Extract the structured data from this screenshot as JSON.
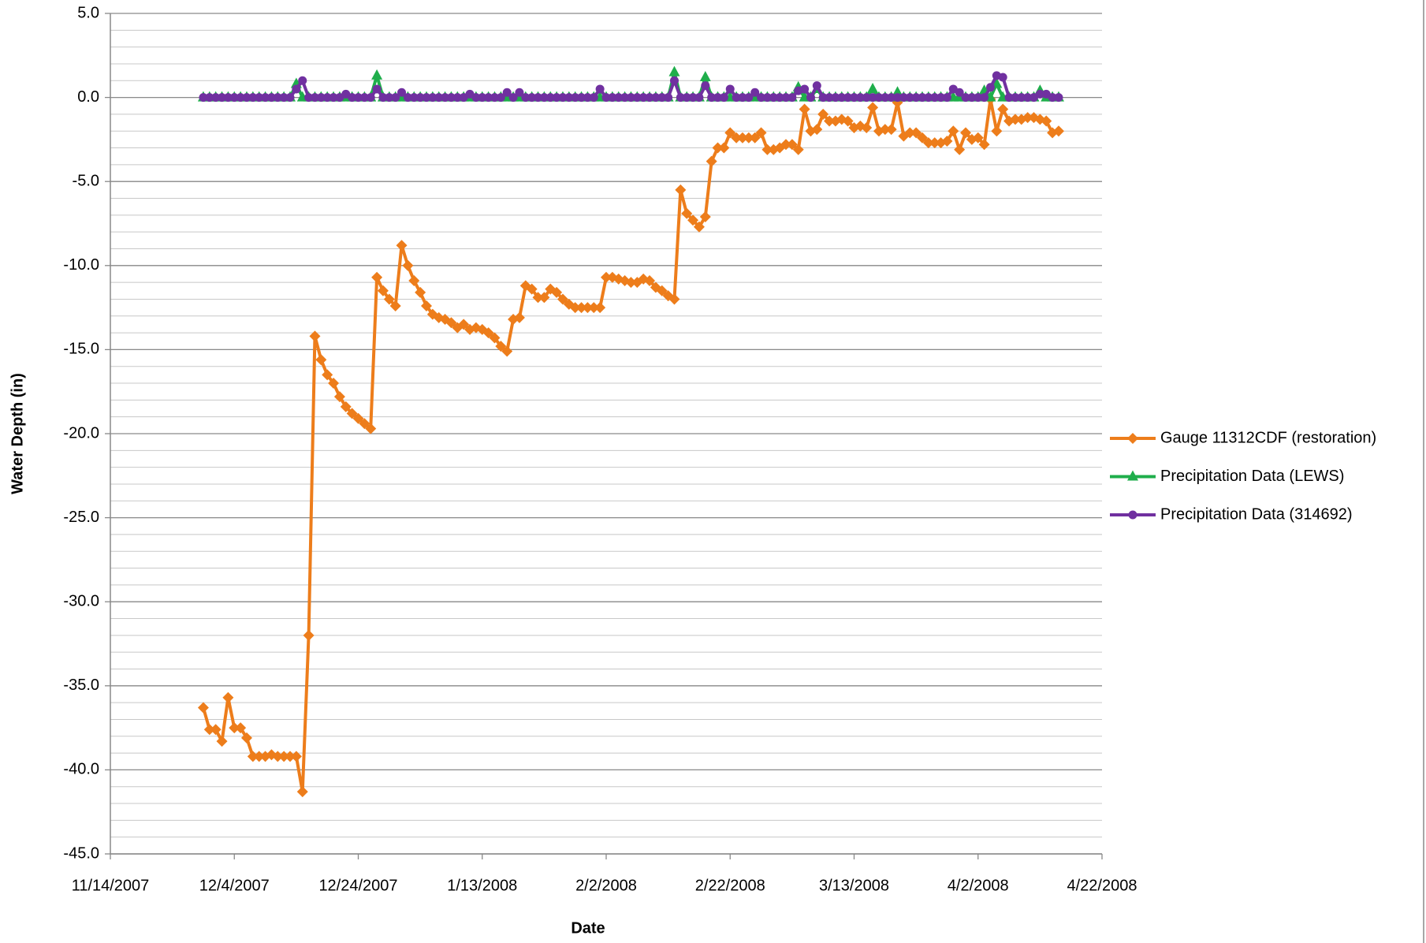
{
  "chart_data": {
    "type": "line",
    "xlabel": "Date",
    "ylabel": "Water Depth (in)",
    "xlim": [
      "11/14/2007",
      "4/22/2008"
    ],
    "xticks": [
      "11/14/2007",
      "12/4/2007",
      "12/24/2007",
      "1/13/2008",
      "2/2/2008",
      "2/22/2008",
      "3/13/2008",
      "4/2/2008",
      "4/22/2008"
    ],
    "ylim": [
      -45,
      5
    ],
    "yticks": [
      {
        "value": 5,
        "label": "5.0"
      },
      {
        "value": 0,
        "label": "0.0"
      },
      {
        "value": -5,
        "label": "-5.0"
      },
      {
        "value": -10,
        "label": "-10.0"
      },
      {
        "value": -15,
        "label": "-15.0"
      },
      {
        "value": -20,
        "label": "-20.0"
      },
      {
        "value": -25,
        "label": "-25.0"
      },
      {
        "value": -30,
        "label": "-30.0"
      },
      {
        "value": -35,
        "label": "-35.0"
      },
      {
        "value": -40,
        "label": "-40.0"
      },
      {
        "value": -45,
        "label": "-45.0"
      }
    ],
    "grid": true,
    "minor_grid": 1,
    "legend": "right",
    "x": [
      "11/29/2007",
      "11/30/2007",
      "12/1/2007",
      "12/2/2007",
      "12/3/2007",
      "12/4/2007",
      "12/5/2007",
      "12/6/2007",
      "12/7/2007",
      "12/8/2007",
      "12/9/2007",
      "12/10/2007",
      "12/11/2007",
      "12/12/2007",
      "12/13/2007",
      "12/14/2007",
      "12/15/2007",
      "12/16/2007",
      "12/17/2007",
      "12/18/2007",
      "12/19/2007",
      "12/20/2007",
      "12/21/2007",
      "12/22/2007",
      "12/23/2007",
      "12/24/2007",
      "12/25/2007",
      "12/26/2007",
      "12/27/2007",
      "12/28/2007",
      "12/29/2007",
      "12/30/2007",
      "12/31/2007",
      "1/1/2008",
      "1/2/2008",
      "1/3/2008",
      "1/4/2008",
      "1/5/2008",
      "1/6/2008",
      "1/7/2008",
      "1/8/2008",
      "1/9/2008",
      "1/10/2008",
      "1/11/2008",
      "1/12/2008",
      "1/13/2008",
      "1/14/2008",
      "1/15/2008",
      "1/16/2008",
      "1/17/2008",
      "1/18/2008",
      "1/19/2008",
      "1/20/2008",
      "1/21/2008",
      "1/22/2008",
      "1/23/2008",
      "1/24/2008",
      "1/25/2008",
      "1/26/2008",
      "1/27/2008",
      "1/28/2008",
      "1/29/2008",
      "1/30/2008",
      "1/31/2008",
      "2/1/2008",
      "2/2/2008",
      "2/3/2008",
      "2/4/2008",
      "2/5/2008",
      "2/6/2008",
      "2/7/2008",
      "2/8/2008",
      "2/9/2008",
      "2/10/2008",
      "2/11/2008",
      "2/12/2008",
      "2/13/2008",
      "2/14/2008",
      "2/15/2008",
      "2/16/2008",
      "2/17/2008",
      "2/18/2008",
      "2/19/2008",
      "2/20/2008",
      "2/21/2008",
      "2/22/2008",
      "2/23/2008",
      "2/24/2008",
      "2/25/2008",
      "2/26/2008",
      "2/27/2008",
      "2/28/2008",
      "2/29/2008",
      "3/1/2008",
      "3/2/2008",
      "3/3/2008",
      "3/4/2008",
      "3/5/2008",
      "3/6/2008",
      "3/7/2008",
      "3/8/2008",
      "3/9/2008",
      "3/10/2008",
      "3/11/2008",
      "3/12/2008",
      "3/13/2008",
      "3/14/2008",
      "3/15/2008",
      "3/16/2008",
      "3/17/2008",
      "3/18/2008",
      "3/19/2008",
      "3/20/2008",
      "3/21/2008",
      "3/22/2008",
      "3/23/2008",
      "3/24/2008",
      "3/25/2008",
      "3/26/2008",
      "3/27/2008",
      "3/28/2008",
      "3/29/2008",
      "3/30/2008",
      "3/31/2008",
      "4/1/2008",
      "4/2/2008",
      "4/3/2008",
      "4/4/2008",
      "4/5/2008",
      "4/6/2008",
      "4/7/2008",
      "4/8/2008",
      "4/9/2008",
      "4/10/2008",
      "4/11/2008",
      "4/12/2008",
      "4/13/2008",
      "4/14/2008",
      "4/15/2008"
    ],
    "series": [
      {
        "name": "Gauge 11312CDF (restoration)",
        "color": "#ed7d1b",
        "marker": "diamond",
        "values": [
          -36.3,
          -37.6,
          -37.6,
          -38.3,
          -35.7,
          -37.5,
          -37.5,
          -38.1,
          -39.2,
          -39.2,
          -39.2,
          -39.1,
          -39.2,
          -39.2,
          -39.2,
          -39.2,
          -41.3,
          -32.0,
          -14.2,
          -15.6,
          -16.5,
          -17.0,
          -17.8,
          -18.4,
          -18.8,
          -19.1,
          -19.4,
          -19.7,
          -10.7,
          -11.5,
          -12.0,
          -12.4,
          -8.8,
          -10.0,
          -10.9,
          -11.6,
          -12.4,
          -12.9,
          -13.1,
          -13.2,
          -13.4,
          -13.7,
          -13.5,
          -13.8,
          -13.7,
          -13.8,
          -14.0,
          -14.3,
          -14.8,
          -15.1,
          -13.2,
          -13.1,
          -11.2,
          -11.4,
          -11.9,
          -11.9,
          -11.4,
          -11.6,
          -12.0,
          -12.3,
          -12.5,
          -12.5,
          -12.5,
          -12.5,
          -12.5,
          -10.7,
          -10.7,
          -10.8,
          -10.9,
          -11.0,
          -11.0,
          -10.8,
          -10.9,
          -11.3,
          -11.5,
          -11.8,
          -12.0,
          -5.5,
          -6.9,
          -7.3,
          -7.7,
          -7.1,
          -3.8,
          -3.0,
          -3.0,
          -2.1,
          -2.4,
          -2.4,
          -2.4,
          -2.4,
          -2.1,
          -3.1,
          -3.1,
          -3.0,
          -2.8,
          -2.8,
          -3.1,
          -0.7,
          -2.0,
          -1.9,
          -1.0,
          -1.4,
          -1.4,
          -1.3,
          -1.4,
          -1.8,
          -1.7,
          -1.8,
          -0.6,
          -2.0,
          -1.9,
          -1.9,
          -0.3,
          -2.3,
          -2.1,
          -2.1,
          -2.4,
          -2.7,
          -2.7,
          -2.7,
          -2.6,
          -2.0,
          -3.1,
          -2.1,
          -2.5,
          -2.4,
          -2.8,
          -0.1,
          -2.0,
          -0.7,
          -1.4,
          -1.3,
          -1.3,
          -1.2,
          -1.2,
          -1.3,
          -1.4,
          -2.1,
          -2.0
        ]
      },
      {
        "name": "Precipitation Data (LEWS)",
        "color": "#1fae4b",
        "marker": "triangle",
        "values": [
          0,
          0,
          0,
          0,
          0,
          0,
          0,
          0,
          0,
          0,
          0,
          0,
          0,
          0,
          0,
          0.8,
          0,
          0,
          0,
          0,
          0,
          0,
          0,
          0,
          0,
          0,
          0,
          0,
          1.3,
          0,
          0,
          0,
          0,
          0,
          0,
          0,
          0,
          0,
          0,
          0,
          0,
          0,
          0,
          0,
          0,
          0,
          0,
          0,
          0,
          0,
          0,
          0,
          0,
          0,
          0,
          0,
          0,
          0,
          0,
          0,
          0,
          0,
          0,
          0,
          0,
          0,
          0,
          0,
          0,
          0,
          0,
          0,
          0,
          0,
          0,
          0,
          1.5,
          0,
          0,
          0,
          0,
          1.2,
          0,
          0,
          0,
          0,
          0,
          0,
          0,
          0,
          0,
          0,
          0,
          0,
          0,
          0,
          0.6,
          0,
          0,
          0.5,
          0,
          0,
          0,
          0,
          0,
          0,
          0,
          0,
          0.5,
          0,
          0,
          0,
          0.3,
          0,
          0,
          0,
          0,
          0,
          0,
          0,
          0,
          0,
          0,
          0,
          0,
          0,
          0.4,
          0,
          0.8,
          0,
          0,
          0,
          0,
          0,
          0,
          0.4,
          0,
          0,
          0
        ]
      },
      {
        "name": "Precipitation Data (314692)",
        "color": "#7030a0",
        "marker": "circle",
        "values": [
          0,
          0,
          0,
          0,
          0,
          0,
          0,
          0,
          0,
          0,
          0,
          0,
          0,
          0,
          0,
          0.5,
          1.0,
          0,
          0,
          0,
          0,
          0,
          0,
          0.2,
          0,
          0,
          0,
          0,
          0.5,
          0,
          0,
          0,
          0.3,
          0,
          0,
          0,
          0,
          0,
          0,
          0,
          0,
          0,
          0,
          0.2,
          0,
          0,
          0,
          0,
          0,
          0.3,
          0,
          0.3,
          0,
          0,
          0,
          0,
          0,
          0,
          0,
          0,
          0,
          0,
          0,
          0,
          0.5,
          0,
          0,
          0,
          0,
          0,
          0,
          0,
          0,
          0,
          0,
          0,
          1.0,
          0,
          0,
          0,
          0,
          0.7,
          0,
          0,
          0,
          0.5,
          0,
          0,
          0,
          0.3,
          0,
          0,
          0,
          0,
          0,
          0,
          0.4,
          0.5,
          0,
          0.7,
          0,
          0,
          0,
          0,
          0,
          0,
          0,
          0,
          0,
          0,
          0,
          0,
          0,
          0,
          0,
          0,
          0,
          0,
          0,
          0,
          0,
          0.5,
          0.3,
          0,
          0,
          0,
          0,
          0.6,
          1.3,
          1.2,
          0,
          0,
          0,
          0,
          0,
          0.2,
          0.2,
          0,
          0
        ]
      }
    ]
  }
}
